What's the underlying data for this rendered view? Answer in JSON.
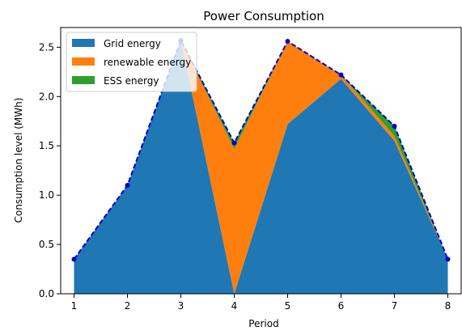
{
  "chart_data": {
    "type": "area",
    "title": "Power Consumption",
    "xlabel": "Period",
    "ylabel": "Consumption level (MWh)",
    "x": [
      1,
      2,
      3,
      4,
      5,
      6,
      7,
      8
    ],
    "xlim": [
      0.75,
      8.25
    ],
    "ylim": [
      0,
      2.7
    ],
    "xticks": [
      "1",
      "2",
      "3",
      "4",
      "5",
      "6",
      "7",
      "8"
    ],
    "yticks": [
      "0.0",
      "0.5",
      "1.0",
      "1.5",
      "2.0",
      "2.5"
    ],
    "ytick_values": [
      0,
      0.5,
      1.0,
      1.5,
      2.0,
      2.5
    ],
    "stacked": true,
    "series": [
      {
        "name": "Grid energy",
        "color": "#1f77b4",
        "values": [
          0.35,
          1.1,
          2.57,
          0.0,
          1.72,
          2.18,
          1.55,
          0.35
        ]
      },
      {
        "name": "renewable energy",
        "color": "#ff7f0e",
        "values": [
          0.0,
          0.0,
          0.0,
          1.47,
          0.84,
          0.04,
          0.05,
          0.0
        ]
      },
      {
        "name": "ESS energy",
        "color": "#2ca02c",
        "values": [
          0.0,
          0.0,
          0.0,
          0.06,
          0.0,
          0.0,
          0.1,
          0.0
        ]
      }
    ],
    "total_line": {
      "color": "#0000cc",
      "style": "dashed",
      "values": [
        0.35,
        1.1,
        2.57,
        1.53,
        2.56,
        2.22,
        1.7,
        0.35
      ]
    },
    "legend": "top-left",
    "grid": false
  }
}
